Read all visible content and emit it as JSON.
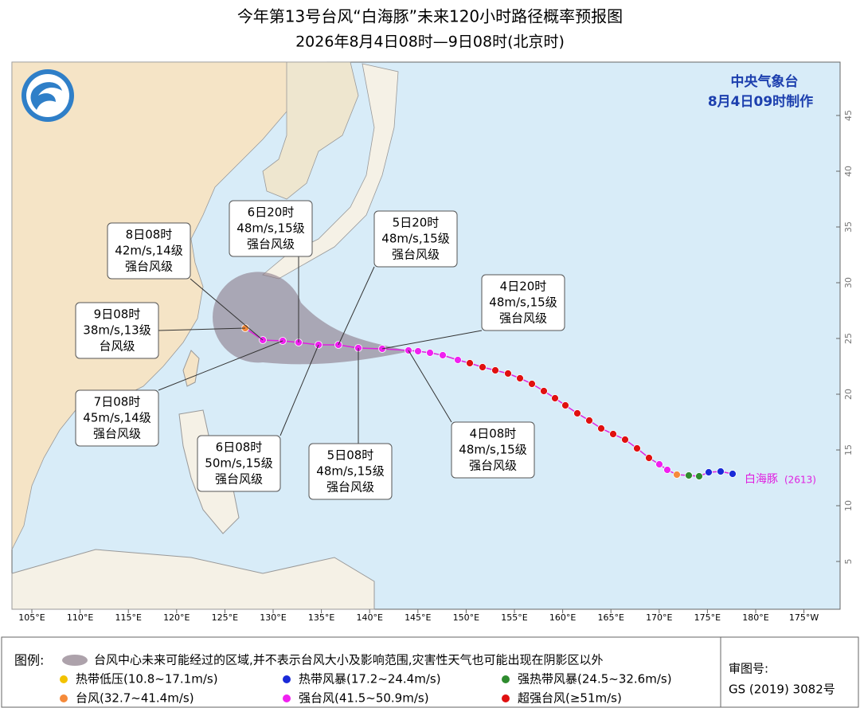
{
  "header": {
    "title": "今年第13号台风“白海豚”未来120小时路径概率预报图",
    "subtitle": "2026年8月4日08时—9日08时(北京时)"
  },
  "issuer": {
    "name": "中央气象台",
    "made": "8月4日09时制作"
  },
  "storm": {
    "name": "白海豚",
    "code": "(2613)"
  },
  "lon_labels": [
    "105°E",
    "110°E",
    "115°E",
    "120°E",
    "125°E",
    "130°E",
    "135°E",
    "140°E",
    "145°E",
    "150°E",
    "155°E",
    "160°E",
    "165°E",
    "170°E",
    "175°E",
    "180°E",
    "175°W"
  ],
  "lat_labels": [
    5,
    10,
    15,
    20,
    25,
    30,
    35,
    40,
    45
  ],
  "annotations": [
    {
      "time": "8日08时",
      "wind": "42m/s,14级",
      "grade": "强台风级"
    },
    {
      "time": "6日20时",
      "wind": "48m/s,15级",
      "grade": "强台风级"
    },
    {
      "time": "5日20时",
      "wind": "48m/s,15级",
      "grade": "强台风级"
    },
    {
      "time": "4日20时",
      "wind": "48m/s,15级",
      "grade": "强台风级"
    },
    {
      "time": "9日08时",
      "wind": "38m/s,13级",
      "grade": "台风级"
    },
    {
      "time": "7日08时",
      "wind": "45m/s,14级",
      "grade": "强台风级"
    },
    {
      "time": "6日08时",
      "wind": "50m/s,15级",
      "grade": "强台风级"
    },
    {
      "time": "5日08时",
      "wind": "48m/s,15级",
      "grade": "强台风级"
    },
    {
      "time": "4日08时",
      "wind": "48m/s,15级",
      "grade": "强台风级"
    }
  ],
  "legend": {
    "title": "图例:",
    "cone": "台风中心未来可能经过的区域,并不表示台风大小及影响范围,灾害性天气也可能出现在阴影区以外",
    "items": [
      {
        "label": "热带低压(10.8~17.1m/s)",
        "color": "#f2c200"
      },
      {
        "label": "热带风暴(17.2~24.4m/s)",
        "color": "#1a2ad8"
      },
      {
        "label": "强热带风暴(24.5~32.6m/s)",
        "color": "#2e8b2e"
      },
      {
        "label": "台风(32.7~41.4m/s)",
        "color": "#f58a3a"
      },
      {
        "label": "强台风(41.5~50.9m/s)",
        "color": "#f020f0"
      },
      {
        "label": "超强台风(≥51m/s)",
        "color": "#e01010"
      }
    ]
  },
  "approval": {
    "label": "审图号:",
    "number": "GS (2019) 3082号"
  }
}
